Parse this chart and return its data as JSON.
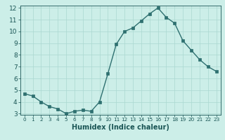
{
  "xlabel": "Humidex (Indice chaleur)",
  "x": [
    0,
    1,
    2,
    3,
    4,
    5,
    6,
    7,
    8,
    9,
    10,
    11,
    12,
    13,
    14,
    15,
    16,
    17,
    18,
    19,
    20,
    21,
    22,
    23
  ],
  "y": [
    4.7,
    4.5,
    4.0,
    3.6,
    3.4,
    3.0,
    3.2,
    3.3,
    3.2,
    4.0,
    6.4,
    8.9,
    10.0,
    10.3,
    10.9,
    11.5,
    12.0,
    11.2,
    10.7,
    9.2,
    8.4,
    7.6,
    7.0,
    6.6
  ],
  "ylim": [
    3,
    12
  ],
  "xlim": [
    -0.5,
    23.5
  ],
  "line_color": "#2e7070",
  "marker_color": "#2e7070",
  "bg_color": "#cceee8",
  "grid_color": "#aad8d0",
  "tick_label_color": "#1a5555",
  "yticks": [
    3,
    4,
    5,
    6,
    7,
    8,
    9,
    10,
    11,
    12
  ],
  "xticks": [
    0,
    1,
    2,
    3,
    4,
    5,
    6,
    7,
    8,
    9,
    10,
    11,
    12,
    13,
    14,
    15,
    16,
    17,
    18,
    19,
    20,
    21,
    22,
    23
  ],
  "xlabel_fontsize": 7.0,
  "tick_fontsize_x": 5.2,
  "tick_fontsize_y": 6.5,
  "linewidth": 1.0,
  "markersize": 2.2
}
